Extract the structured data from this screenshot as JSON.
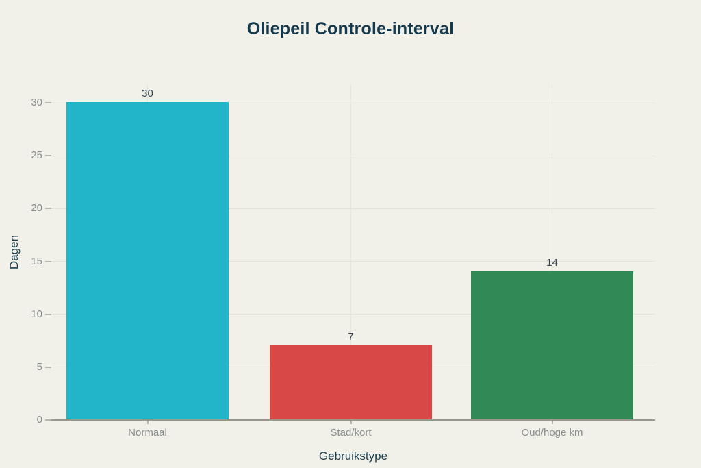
{
  "chart_data": {
    "type": "bar",
    "title": "Oliepeil Controle-interval",
    "xlabel": "Gebruikstype",
    "ylabel": "Dagen",
    "categories": [
      "Normaal",
      "Stad/kort",
      "Oud/hoge km"
    ],
    "values": [
      30,
      7,
      14
    ],
    "value_labels": [
      "30",
      "7",
      "14"
    ],
    "bar_colors": [
      "#22b4c8",
      "#d84846",
      "#318a56"
    ],
    "yticks": [
      0,
      5,
      10,
      15,
      20,
      25,
      30
    ],
    "ylim": [
      0,
      31.7
    ],
    "grid": true,
    "legend": "none"
  },
  "theme": {
    "background": "#f1f1ea",
    "title_color": "#163a4d",
    "axis_title_color": "#1d4150",
    "tick_label_color": "#8a8d8f",
    "value_label_color": "#33424d",
    "grid_color": "#e2e2d9",
    "vgrid_color": "#e6e6de",
    "axis_line_color": "#98988f",
    "tick_mark_color": "#b5b5ad"
  }
}
